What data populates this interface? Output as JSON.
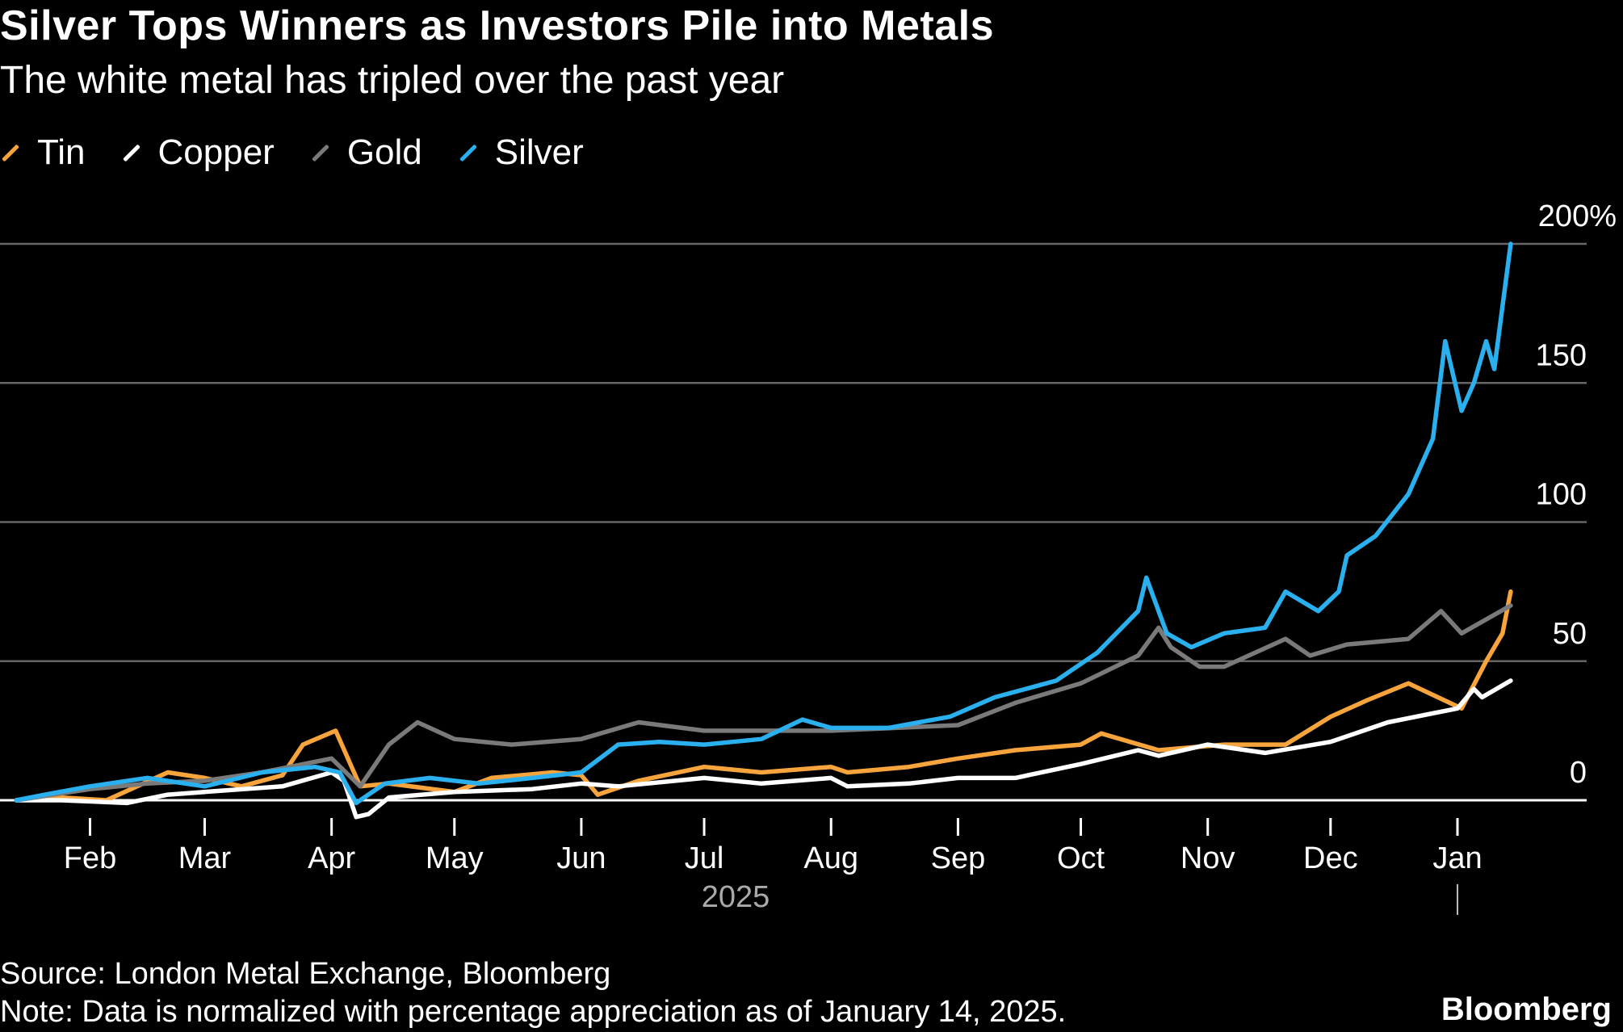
{
  "title": "Silver Tops Winners as Investors Pile into Metals",
  "subtitle": "The white metal has tripled over the past year",
  "source": "Source: London Metal Exchange, Bloomberg",
  "note": "Note: Data is normalized with percentage appreciation as of January 14, 2025.",
  "brand": "Bloomberg",
  "chart_data": {
    "type": "line",
    "ylim": [
      -10,
      210
    ],
    "yticks": [
      {
        "v": 0,
        "label": "0"
      },
      {
        "v": 50,
        "label": "50"
      },
      {
        "v": 100,
        "label": "100"
      },
      {
        "v": 150,
        "label": "150"
      },
      {
        "v": 200,
        "label": "200%"
      }
    ],
    "xticks": [
      {
        "d": "2025-02-01",
        "label": "Feb"
      },
      {
        "d": "2025-03-01",
        "label": "Mar"
      },
      {
        "d": "2025-04-01",
        "label": "Apr"
      },
      {
        "d": "2025-05-01",
        "label": "May"
      },
      {
        "d": "2025-06-01",
        "label": "Jun"
      },
      {
        "d": "2025-07-01",
        "label": "Jul"
      },
      {
        "d": "2025-08-01",
        "label": "Aug"
      },
      {
        "d": "2025-09-01",
        "label": "Sep"
      },
      {
        "d": "2025-10-01",
        "label": "Oct"
      },
      {
        "d": "2025-11-01",
        "label": "Nov"
      },
      {
        "d": "2025-12-01",
        "label": "Dec"
      },
      {
        "d": "2026-01-01",
        "label": "Jan"
      }
    ],
    "year_label": "2025",
    "grid": true,
    "legend_position": "top-left",
    "series": [
      {
        "name": "Tin",
        "color": "#f8a43c",
        "points": [
          [
            "2025-01-14",
            0
          ],
          [
            "2025-01-25",
            1
          ],
          [
            "2025-02-05",
            0
          ],
          [
            "2025-02-20",
            10
          ],
          [
            "2025-03-01",
            8
          ],
          [
            "2025-03-10",
            5
          ],
          [
            "2025-03-20",
            9
          ],
          [
            "2025-03-25",
            20
          ],
          [
            "2025-04-02",
            25
          ],
          [
            "2025-04-08",
            5
          ],
          [
            "2025-04-15",
            6
          ],
          [
            "2025-05-01",
            3
          ],
          [
            "2025-05-10",
            8
          ],
          [
            "2025-05-25",
            10
          ],
          [
            "2025-06-01",
            9
          ],
          [
            "2025-06-05",
            2
          ],
          [
            "2025-06-15",
            7
          ],
          [
            "2025-07-01",
            12
          ],
          [
            "2025-07-15",
            10
          ],
          [
            "2025-08-01",
            12
          ],
          [
            "2025-08-05",
            10
          ],
          [
            "2025-08-20",
            12
          ],
          [
            "2025-09-01",
            15
          ],
          [
            "2025-09-15",
            18
          ],
          [
            "2025-10-01",
            20
          ],
          [
            "2025-10-06",
            24
          ],
          [
            "2025-10-20",
            18
          ],
          [
            "2025-11-05",
            20
          ],
          [
            "2025-11-20",
            20
          ],
          [
            "2025-12-01",
            30
          ],
          [
            "2025-12-10",
            36
          ],
          [
            "2025-12-20",
            42
          ],
          [
            "2026-01-02",
            33
          ],
          [
            "2026-01-08",
            50
          ],
          [
            "2026-01-12",
            60
          ],
          [
            "2026-01-14",
            75
          ]
        ]
      },
      {
        "name": "Copper",
        "color": "#ffffff",
        "points": [
          [
            "2025-01-14",
            0
          ],
          [
            "2025-01-25",
            0
          ],
          [
            "2025-02-10",
            -1
          ],
          [
            "2025-02-20",
            2
          ],
          [
            "2025-03-01",
            3
          ],
          [
            "2025-03-20",
            5
          ],
          [
            "2025-04-01",
            10
          ],
          [
            "2025-04-04",
            7
          ],
          [
            "2025-04-07",
            -6
          ],
          [
            "2025-04-10",
            -5
          ],
          [
            "2025-04-15",
            1
          ],
          [
            "2025-05-01",
            3
          ],
          [
            "2025-05-20",
            4
          ],
          [
            "2025-06-01",
            6
          ],
          [
            "2025-06-10",
            5
          ],
          [
            "2025-07-01",
            8
          ],
          [
            "2025-07-15",
            6
          ],
          [
            "2025-08-01",
            8
          ],
          [
            "2025-08-05",
            5
          ],
          [
            "2025-08-20",
            6
          ],
          [
            "2025-09-01",
            8
          ],
          [
            "2025-09-15",
            8
          ],
          [
            "2025-10-01",
            13
          ],
          [
            "2025-10-15",
            18
          ],
          [
            "2025-10-20",
            16
          ],
          [
            "2025-11-01",
            20
          ],
          [
            "2025-11-15",
            17
          ],
          [
            "2025-12-01",
            21
          ],
          [
            "2025-12-15",
            28
          ],
          [
            "2026-01-01",
            33
          ],
          [
            "2026-01-05",
            40
          ],
          [
            "2026-01-07",
            37
          ],
          [
            "2026-01-14",
            43
          ]
        ]
      },
      {
        "name": "Gold",
        "color": "#7a7a7a",
        "points": [
          [
            "2025-01-14",
            0
          ],
          [
            "2025-02-01",
            4
          ],
          [
            "2025-02-15",
            6
          ],
          [
            "2025-03-01",
            7
          ],
          [
            "2025-03-15",
            10
          ],
          [
            "2025-04-01",
            15
          ],
          [
            "2025-04-08",
            5
          ],
          [
            "2025-04-15",
            20
          ],
          [
            "2025-04-22",
            28
          ],
          [
            "2025-05-01",
            22
          ],
          [
            "2025-05-15",
            20
          ],
          [
            "2025-06-01",
            22
          ],
          [
            "2025-06-15",
            28
          ],
          [
            "2025-07-01",
            25
          ],
          [
            "2025-08-01",
            25
          ],
          [
            "2025-09-01",
            27
          ],
          [
            "2025-09-15",
            35
          ],
          [
            "2025-10-01",
            42
          ],
          [
            "2025-10-15",
            52
          ],
          [
            "2025-10-20",
            62
          ],
          [
            "2025-10-23",
            55
          ],
          [
            "2025-10-30",
            48
          ],
          [
            "2025-11-05",
            48
          ],
          [
            "2025-11-20",
            58
          ],
          [
            "2025-11-26",
            52
          ],
          [
            "2025-12-05",
            56
          ],
          [
            "2025-12-20",
            58
          ],
          [
            "2025-12-28",
            68
          ],
          [
            "2026-01-02",
            60
          ],
          [
            "2026-01-14",
            70
          ]
        ]
      },
      {
        "name": "Silver",
        "color": "#2ab0ee",
        "points": [
          [
            "2025-01-14",
            0
          ],
          [
            "2025-01-21",
            2
          ],
          [
            "2025-02-01",
            5
          ],
          [
            "2025-02-15",
            8
          ],
          [
            "2025-03-01",
            5
          ],
          [
            "2025-03-15",
            10
          ],
          [
            "2025-03-28",
            12
          ],
          [
            "2025-04-03",
            10
          ],
          [
            "2025-04-07",
            -1
          ],
          [
            "2025-04-14",
            6
          ],
          [
            "2025-04-25",
            8
          ],
          [
            "2025-05-07",
            6
          ],
          [
            "2025-05-20",
            8
          ],
          [
            "2025-06-01",
            10
          ],
          [
            "2025-06-10",
            20
          ],
          [
            "2025-06-20",
            21
          ],
          [
            "2025-07-01",
            20
          ],
          [
            "2025-07-15",
            22
          ],
          [
            "2025-07-25",
            29
          ],
          [
            "2025-08-01",
            26
          ],
          [
            "2025-08-15",
            26
          ],
          [
            "2025-08-30",
            30
          ],
          [
            "2025-09-10",
            37
          ],
          [
            "2025-09-25",
            43
          ],
          [
            "2025-10-05",
            53
          ],
          [
            "2025-10-15",
            68
          ],
          [
            "2025-10-17",
            80
          ],
          [
            "2025-10-22",
            60
          ],
          [
            "2025-10-28",
            55
          ],
          [
            "2025-11-05",
            60
          ],
          [
            "2025-11-15",
            62
          ],
          [
            "2025-11-20",
            75
          ],
          [
            "2025-11-28",
            68
          ],
          [
            "2025-12-03",
            75
          ],
          [
            "2025-12-05",
            88
          ],
          [
            "2025-12-12",
            95
          ],
          [
            "2025-12-20",
            110
          ],
          [
            "2025-12-26",
            130
          ],
          [
            "2025-12-29",
            165
          ],
          [
            "2026-01-02",
            140
          ],
          [
            "2026-01-05",
            150
          ],
          [
            "2026-01-08",
            165
          ],
          [
            "2026-01-10",
            155
          ],
          [
            "2026-01-14",
            200
          ]
        ]
      }
    ]
  }
}
